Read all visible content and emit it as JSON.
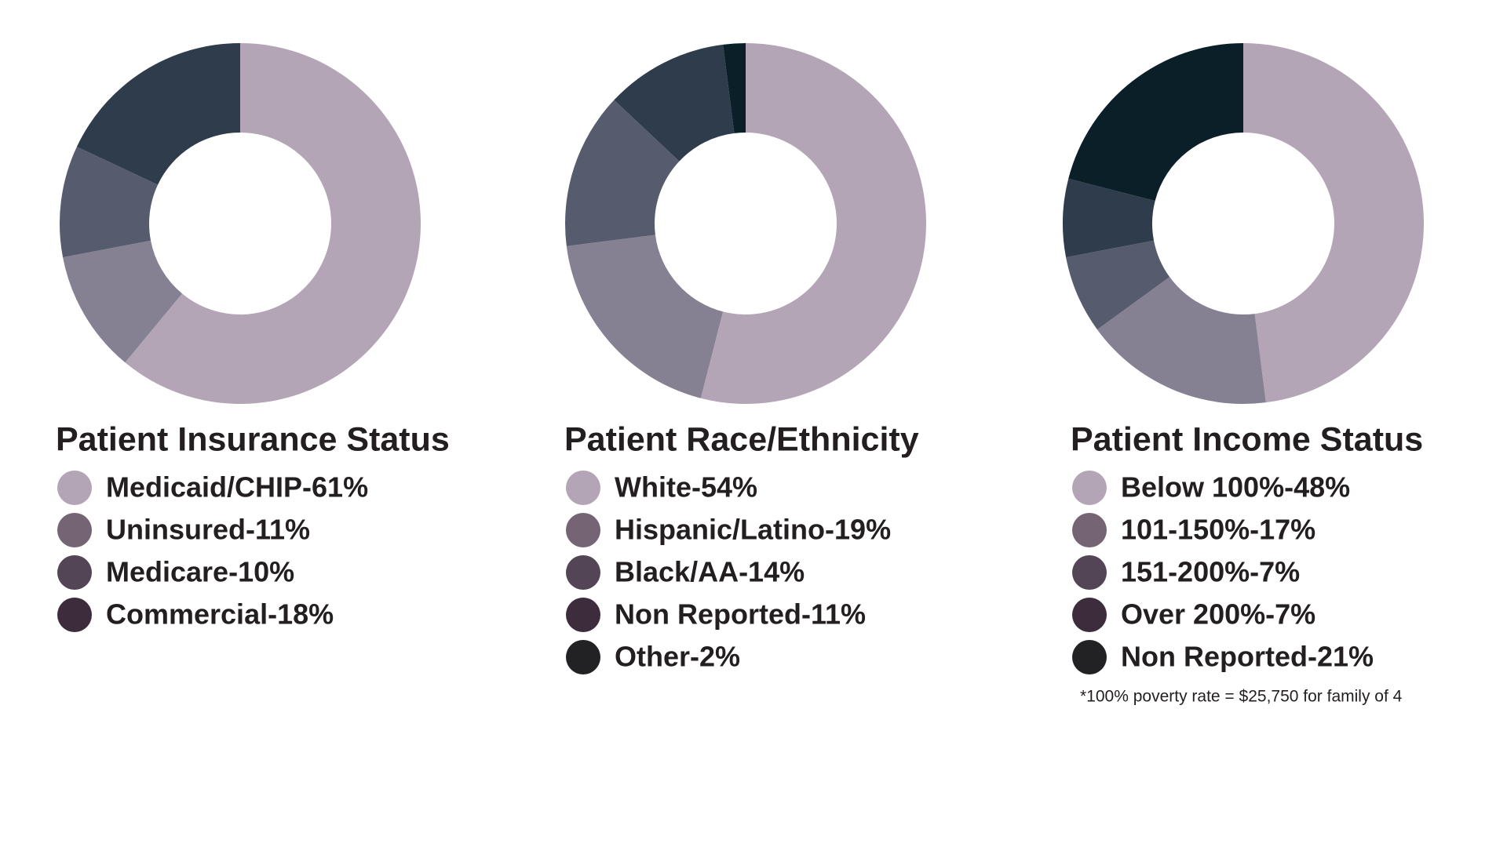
{
  "chart_data": [
    {
      "type": "pie",
      "title": "Patient Insurance Status",
      "categories": [
        "Medicaid/CHIP-61%",
        "Uninsured-11%",
        "Medicare-10%",
        "Commercial-18%"
      ],
      "values": [
        61,
        11,
        10,
        18
      ],
      "colors": [
        "#b3a5b5",
        "#858193",
        "#565c6e",
        "#2f3c4b"
      ],
      "legend_colors": [
        "#b3a5b5",
        "#756574",
        "#534555",
        "#3d2d3c"
      ]
    },
    {
      "type": "pie",
      "title": "Patient Race/Ethnicity",
      "categories": [
        "White-54%",
        "Hispanic/Latino-19%",
        "Black/AA-14%",
        "Non Reported-11%",
        "Other-2%"
      ],
      "values": [
        54,
        19,
        14,
        11,
        2
      ],
      "colors": [
        "#b3a5b5",
        "#858193",
        "#565c6e",
        "#2f3c4b",
        "#0b1f29"
      ],
      "legend_colors": [
        "#b3a5b5",
        "#756574",
        "#534555",
        "#3d2d3c",
        "#222224"
      ]
    },
    {
      "type": "pie",
      "title": "Patient Income Status",
      "categories": [
        "Below 100%-48%",
        "101-150%-17%",
        "151-200%-7%",
        "Over 200%-7%",
        "Non Reported-21%"
      ],
      "values": [
        48,
        17,
        7,
        7,
        21
      ],
      "colors": [
        "#b3a5b5",
        "#858193",
        "#565c6e",
        "#2f3c4b",
        "#0b1f29"
      ],
      "legend_colors": [
        "#b3a5b5",
        "#756574",
        "#534555",
        "#3d2d3c",
        "#222224"
      ],
      "note": "*100% poverty rate = $25,750 for family of 4"
    }
  ]
}
